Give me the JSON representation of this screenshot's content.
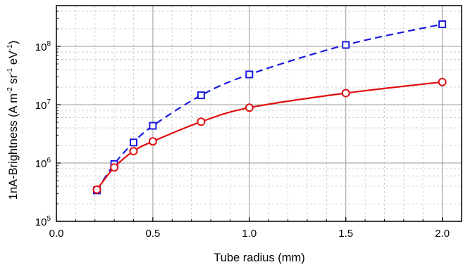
{
  "chart_data": {
    "type": "line",
    "xlabel": "Tube radius (mm)",
    "ylabel": {
      "prefix": "1nA-Brightness (A m",
      "exp1": "-2",
      "mid1": " sr",
      "exp2": "-1",
      "mid2": " eV",
      "exp3": "-1",
      "suffix": ")"
    },
    "xlim": [
      0.0,
      2.1
    ],
    "ylim": [
      100000,
      500000000
    ],
    "yscale": "log",
    "grid": true,
    "x_ticks": [
      0.0,
      0.5,
      1.0,
      1.5,
      2.0
    ],
    "x_tick_labels": [
      "0.0",
      "0.5",
      "1.0",
      "1.5",
      "2.0"
    ],
    "y_ticks": [
      100000,
      1000000,
      10000000,
      100000000
    ],
    "y_tick_labels": [
      {
        "base": "10",
        "exp": "5"
      },
      {
        "base": "10",
        "exp": "6"
      },
      {
        "base": "10",
        "exp": "7"
      },
      {
        "base": "10",
        "exp": "8"
      }
    ],
    "series": [
      {
        "color": "#1a1adf",
        "line_style": "dashed",
        "marker": "square",
        "x": [
          0.21,
          0.3,
          0.4,
          0.5,
          0.75,
          1.0,
          1.5,
          2.0
        ],
        "y": [
          340000,
          960000,
          2250000,
          4350000,
          14500000,
          33000000,
          106000000,
          240000000
        ]
      },
      {
        "color": "#e01010",
        "line_style": "solid",
        "marker": "circle",
        "x": [
          0.21,
          0.3,
          0.4,
          0.5,
          0.75,
          1.0,
          1.5,
          2.0
        ],
        "y": [
          350000,
          840000,
          1600000,
          2350000,
          5100000,
          8900000,
          15800000,
          24500000
        ]
      }
    ]
  }
}
